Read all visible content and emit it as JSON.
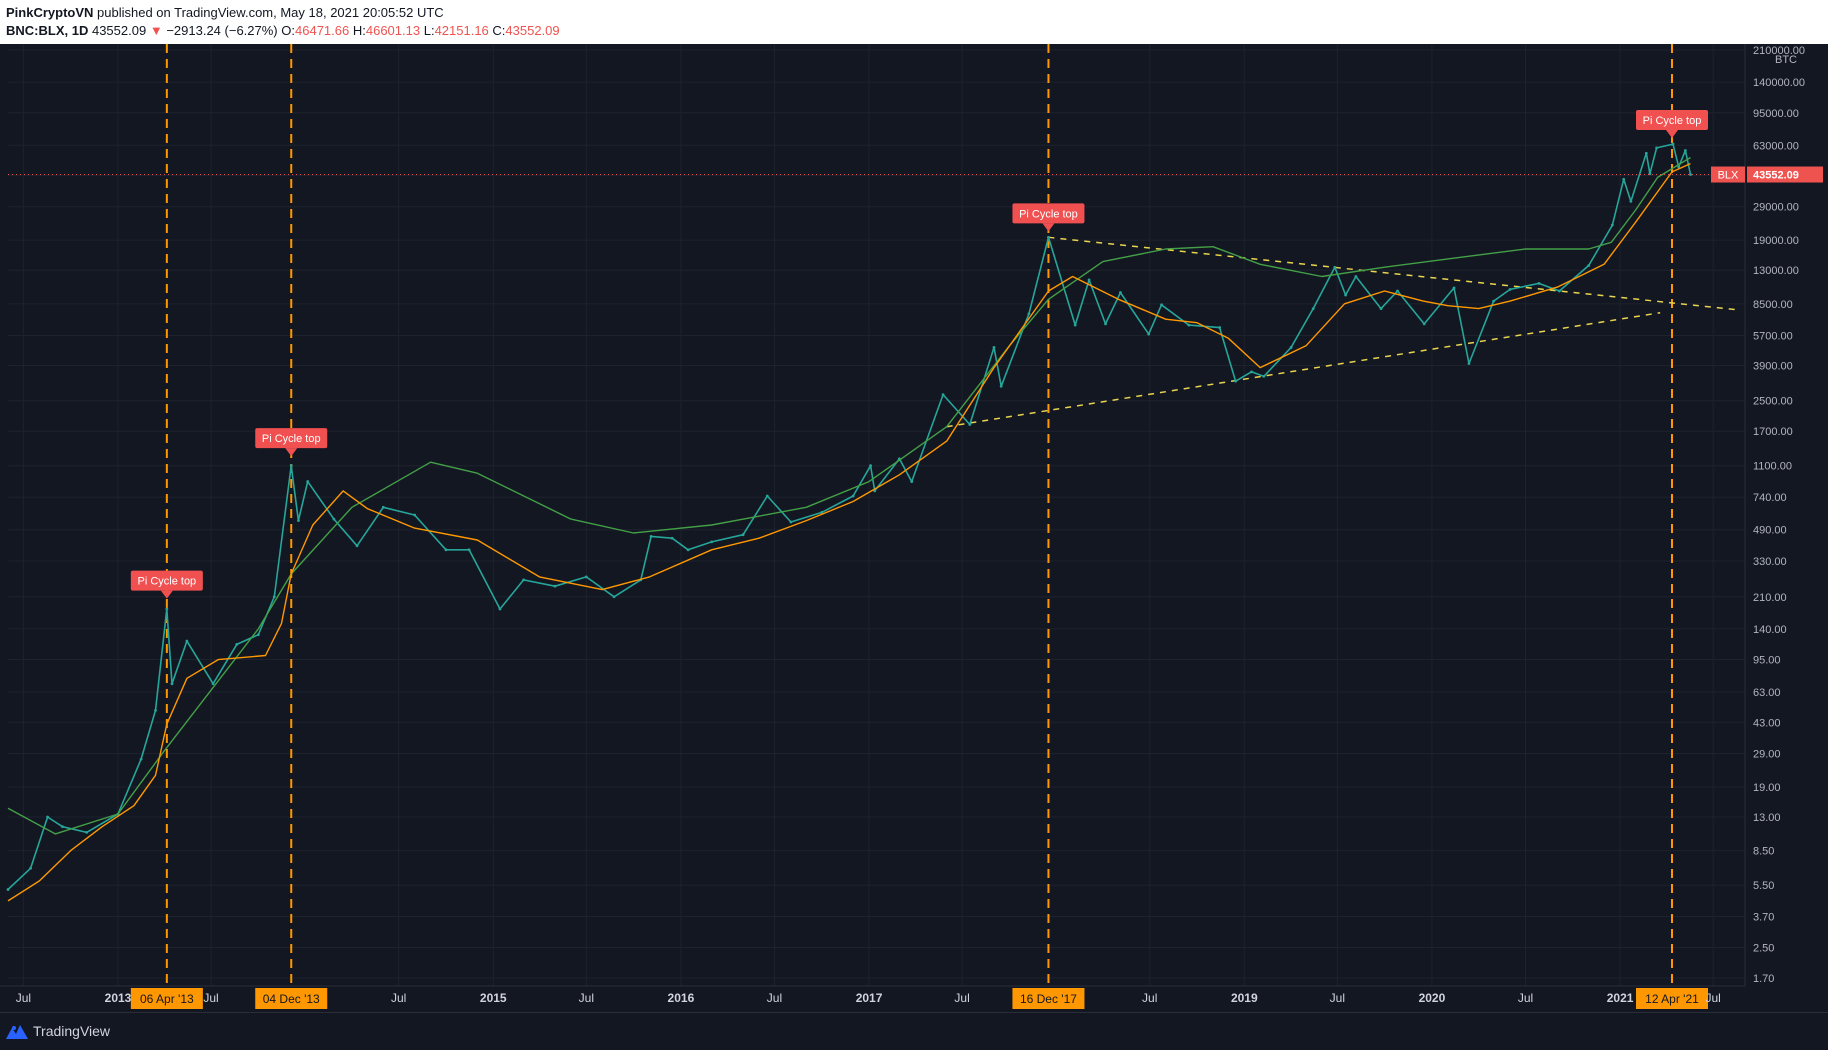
{
  "header": {
    "author": "PinkCryptoVN",
    "published_text": "published on TradingView.com, May 18, 2021 20:05:52 UTC",
    "symbol": "BNC:BLX, 1D",
    "last": "43552.09",
    "change": "−2913.24 (−6.27%)",
    "o_label": "O:",
    "o": "46471.66",
    "h_label": "H:",
    "h": "46601.13",
    "l_label": "L:",
    "l": "42151.16",
    "c_label": "C:",
    "c": "43552.09"
  },
  "footer": {
    "brand": "TradingView"
  },
  "colors": {
    "background": "#131722",
    "grid": "#1e222d",
    "price": "#26a69a",
    "down": "#ef5350",
    "ma_long": "#43a047",
    "ma_short": "#ff9800",
    "cycle_line": "#ff9800",
    "trend_line": "#e8d44d",
    "label_bg": "#f05050",
    "date_badge": "#ff9800"
  },
  "chart_data": {
    "type": "line",
    "title": "",
    "xlabel": "",
    "ylabel": "",
    "y_scale": "log",
    "ylim": [
      1.7,
      210000
    ],
    "xlim": [
      "2012-06-01",
      "2021-09-01"
    ],
    "currency": "BTC",
    "y_ticks": [
      "210000.00",
      "140000.00",
      "95000.00",
      "63000.00",
      "43000.00",
      "29000.00",
      "19000.00",
      "13000.00",
      "8500.00",
      "5700.00",
      "3900.00",
      "2500.00",
      "1700.00",
      "1100.00",
      "740.00",
      "490.00",
      "330.00",
      "210.00",
      "140.00",
      "95.00",
      "63.00",
      "43.00",
      "29.00",
      "19.00",
      "13.00",
      "8.50",
      "5.50",
      "3.70",
      "2.50",
      "1.70"
    ],
    "x_ticks": [
      {
        "date": "2012-07-01",
        "label": "Jul"
      },
      {
        "date": "2013-01-01",
        "label": "2013"
      },
      {
        "date": "2013-07-01",
        "label": "Jul"
      },
      {
        "date": "2014-07-01",
        "label": "Jul"
      },
      {
        "date": "2015-01-01",
        "label": "2015"
      },
      {
        "date": "2015-07-01",
        "label": "Jul"
      },
      {
        "date": "2016-01-01",
        "label": "2016"
      },
      {
        "date": "2016-07-01",
        "label": "Jul"
      },
      {
        "date": "2017-01-01",
        "label": "2017"
      },
      {
        "date": "2017-07-01",
        "label": "Jul"
      },
      {
        "date": "2018-07-01",
        "label": "Jul"
      },
      {
        "date": "2019-01-01",
        "label": "2019"
      },
      {
        "date": "2019-07-01",
        "label": "Jul"
      },
      {
        "date": "2020-01-01",
        "label": "2020"
      },
      {
        "date": "2020-07-01",
        "label": "Jul"
      },
      {
        "date": "2021-01-01",
        "label": "2021"
      },
      {
        "date": "2021-07-01",
        "label": "Jul"
      }
    ],
    "last_price": {
      "label": "BLX",
      "value": "43552.09",
      "y": 43552.09
    },
    "cycle_tops": [
      {
        "date": "2013-04-06",
        "badge": "06 Apr '13",
        "label": "Pi Cycle top",
        "peak": 190
      },
      {
        "date": "2013-12-04",
        "badge": "04 Dec '13",
        "label": "Pi Cycle top",
        "peak": 1150
      },
      {
        "date": "2017-12-16",
        "badge": "16 Dec '17",
        "label": "Pi Cycle top",
        "peak": 19700
      },
      {
        "date": "2021-04-12",
        "badge": "12 Apr '21",
        "label": "Pi Cycle top",
        "peak": 64000
      }
    ],
    "trend_lines": [
      {
        "name": "",
        "points": [
          [
            "2017-12-16",
            19700
          ],
          [
            "2021-08-15",
            7900
          ]
        ]
      },
      {
        "name": "",
        "points": [
          [
            "2017-06-01",
            1800
          ],
          [
            "2021-03-20",
            7600
          ]
        ]
      }
    ],
    "series": [
      {
        "key": "price",
        "name": "",
        "values": [
          [
            "2012-06-01",
            5.2
          ],
          [
            "2012-07-15",
            6.8
          ],
          [
            "2012-08-17",
            13
          ],
          [
            "2012-09-15",
            11.5
          ],
          [
            "2012-11-01",
            10.7
          ],
          [
            "2013-01-01",
            13.5
          ],
          [
            "2013-02-15",
            27
          ],
          [
            "2013-03-15",
            50
          ],
          [
            "2013-04-06",
            180
          ],
          [
            "2013-04-16",
            70
          ],
          [
            "2013-05-15",
            120
          ],
          [
            "2013-07-05",
            70
          ],
          [
            "2013-08-20",
            115
          ],
          [
            "2013-10-01",
            130
          ],
          [
            "2013-11-01",
            210
          ],
          [
            "2013-12-04",
            1100
          ],
          [
            "2013-12-18",
            550
          ],
          [
            "2014-01-05",
            900
          ],
          [
            "2014-02-25",
            560
          ],
          [
            "2014-04-11",
            400
          ],
          [
            "2014-06-01",
            650
          ],
          [
            "2014-08-01",
            590
          ],
          [
            "2014-10-01",
            380
          ],
          [
            "2014-11-15",
            380
          ],
          [
            "2015-01-14",
            180
          ],
          [
            "2015-03-01",
            260
          ],
          [
            "2015-05-01",
            240
          ],
          [
            "2015-07-01",
            270
          ],
          [
            "2015-08-24",
            210
          ],
          [
            "2015-10-15",
            260
          ],
          [
            "2015-11-04",
            450
          ],
          [
            "2015-12-15",
            440
          ],
          [
            "2016-01-15",
            380
          ],
          [
            "2016-03-01",
            420
          ],
          [
            "2016-05-01",
            460
          ],
          [
            "2016-06-17",
            750
          ],
          [
            "2016-08-02",
            540
          ],
          [
            "2016-10-01",
            610
          ],
          [
            "2016-12-01",
            750
          ],
          [
            "2017-01-04",
            1100
          ],
          [
            "2017-01-12",
            800
          ],
          [
            "2017-03-01",
            1200
          ],
          [
            "2017-03-25",
            900
          ],
          [
            "2017-05-25",
            2700
          ],
          [
            "2017-07-16",
            1850
          ],
          [
            "2017-09-01",
            4900
          ],
          [
            "2017-09-15",
            3000
          ],
          [
            "2017-11-08",
            7500
          ],
          [
            "2017-12-16",
            19700
          ],
          [
            "2018-02-06",
            6500
          ],
          [
            "2018-03-05",
            11500
          ],
          [
            "2018-04-06",
            6600
          ],
          [
            "2018-05-05",
            9800
          ],
          [
            "2018-06-29",
            5800
          ],
          [
            "2018-07-24",
            8400
          ],
          [
            "2018-09-15",
            6500
          ],
          [
            "2018-11-14",
            6300
          ],
          [
            "2018-12-15",
            3200
          ],
          [
            "2019-01-15",
            3600
          ],
          [
            "2019-02-08",
            3400
          ],
          [
            "2019-04-02",
            4900
          ],
          [
            "2019-05-15",
            8000
          ],
          [
            "2019-06-26",
            13500
          ],
          [
            "2019-07-17",
            9500
          ],
          [
            "2019-08-06",
            12000
          ],
          [
            "2019-09-24",
            8000
          ],
          [
            "2019-10-26",
            10000
          ],
          [
            "2019-12-17",
            6600
          ],
          [
            "2020-02-13",
            10400
          ],
          [
            "2020-03-13",
            4000
          ],
          [
            "2020-04-30",
            8800
          ],
          [
            "2020-06-01",
            10200
          ],
          [
            "2020-07-27",
            11000
          ],
          [
            "2020-09-05",
            10000
          ],
          [
            "2020-11-01",
            13800
          ],
          [
            "2020-12-17",
            23000
          ],
          [
            "2021-01-08",
            41000
          ],
          [
            "2021-01-22",
            31000
          ],
          [
            "2021-02-21",
            57000
          ],
          [
            "2021-02-28",
            44000
          ],
          [
            "2021-03-13",
            61000
          ],
          [
            "2021-04-14",
            64000
          ],
          [
            "2021-04-25",
            48000
          ],
          [
            "2021-05-08",
            59000
          ],
          [
            "2021-05-18",
            43552
          ]
        ]
      },
      {
        "key": "ma_long",
        "name": "",
        "values": [
          [
            "2012-06-01",
            14.5
          ],
          [
            "2012-09-01",
            10.5
          ],
          [
            "2013-01-01",
            13.5
          ],
          [
            "2013-04-01",
            30
          ],
          [
            "2013-10-01",
            140
          ],
          [
            "2013-12-04",
            280
          ],
          [
            "2014-04-01",
            650
          ],
          [
            "2014-09-01",
            1150
          ],
          [
            "2014-12-01",
            1000
          ],
          [
            "2015-06-01",
            560
          ],
          [
            "2015-10-01",
            470
          ],
          [
            "2016-03-01",
            520
          ],
          [
            "2016-09-01",
            650
          ],
          [
            "2017-01-01",
            900
          ],
          [
            "2017-06-01",
            1800
          ],
          [
            "2017-10-01",
            5000
          ],
          [
            "2017-12-16",
            9000
          ],
          [
            "2018-04-01",
            14500
          ],
          [
            "2018-08-01",
            17000
          ],
          [
            "2018-11-01",
            17500
          ],
          [
            "2019-02-01",
            14000
          ],
          [
            "2019-06-01",
            12000
          ],
          [
            "2019-10-01",
            13500
          ],
          [
            "2020-02-01",
            15000
          ],
          [
            "2020-07-01",
            17000
          ],
          [
            "2020-11-01",
            17000
          ],
          [
            "2020-12-15",
            18500
          ],
          [
            "2021-02-01",
            28000
          ],
          [
            "2021-03-15",
            42000
          ],
          [
            "2021-05-18",
            54000
          ]
        ]
      },
      {
        "key": "ma_short",
        "name": "",
        "values": [
          [
            "2012-06-01",
            4.5
          ],
          [
            "2012-08-01",
            5.8
          ],
          [
            "2012-10-01",
            8.5
          ],
          [
            "2012-12-01",
            11.5
          ],
          [
            "2013-02-01",
            15
          ],
          [
            "2013-03-15",
            22
          ],
          [
            "2013-04-06",
            42
          ],
          [
            "2013-05-15",
            75
          ],
          [
            "2013-07-15",
            95
          ],
          [
            "2013-10-15",
            100
          ],
          [
            "2013-11-15",
            150
          ],
          [
            "2013-12-04",
            280
          ],
          [
            "2014-01-15",
            520
          ],
          [
            "2014-03-15",
            800
          ],
          [
            "2014-05-01",
            640
          ],
          [
            "2014-08-01",
            500
          ],
          [
            "2014-12-01",
            430
          ],
          [
            "2015-04-01",
            270
          ],
          [
            "2015-08-01",
            230
          ],
          [
            "2015-11-01",
            270
          ],
          [
            "2016-03-01",
            380
          ],
          [
            "2016-06-01",
            440
          ],
          [
            "2016-09-01",
            550
          ],
          [
            "2016-12-01",
            700
          ],
          [
            "2017-03-01",
            980
          ],
          [
            "2017-06-01",
            1500
          ],
          [
            "2017-09-01",
            3800
          ],
          [
            "2017-12-16",
            10000
          ],
          [
            "2018-02-01",
            12000
          ],
          [
            "2018-05-01",
            9000
          ],
          [
            "2018-08-01",
            7000
          ],
          [
            "2018-10-01",
            6700
          ],
          [
            "2018-12-01",
            5500
          ],
          [
            "2019-02-01",
            3800
          ],
          [
            "2019-05-01",
            5000
          ],
          [
            "2019-07-15",
            8500
          ],
          [
            "2019-10-01",
            10000
          ],
          [
            "2019-12-15",
            8800
          ],
          [
            "2020-02-01",
            8300
          ],
          [
            "2020-04-01",
            8000
          ],
          [
            "2020-06-01",
            8800
          ],
          [
            "2020-09-01",
            10500
          ],
          [
            "2020-12-01",
            14000
          ],
          [
            "2021-02-01",
            24000
          ],
          [
            "2021-04-12",
            45000
          ],
          [
            "2021-05-18",
            50000
          ]
        ]
      }
    ]
  }
}
